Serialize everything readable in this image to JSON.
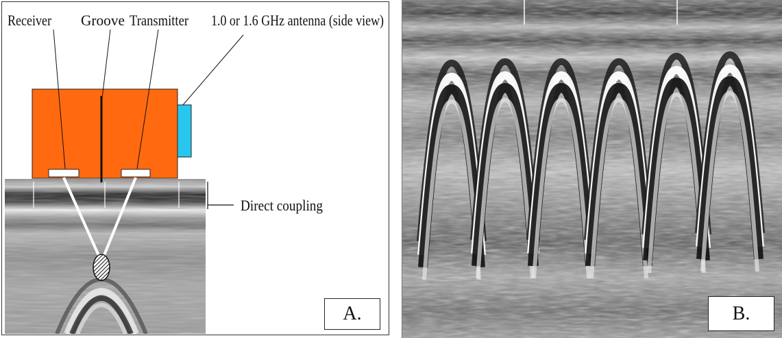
{
  "panel_a": {
    "labels": {
      "receiver": "Receiver",
      "groove": "Groove",
      "transmitter": "Transmitter",
      "antenna": "1.0 or 1.6 GHz antenna (side view)",
      "direct_coupling": "Direct coupling"
    },
    "panel_letter": "A.",
    "colors": {
      "antenna_body": "#ff6a10",
      "antenna_cap": "#29c6ee",
      "pads": "#ffffff"
    }
  },
  "panel_b": {
    "panel_letter": "B.",
    "hyperbola_count": 6
  }
}
